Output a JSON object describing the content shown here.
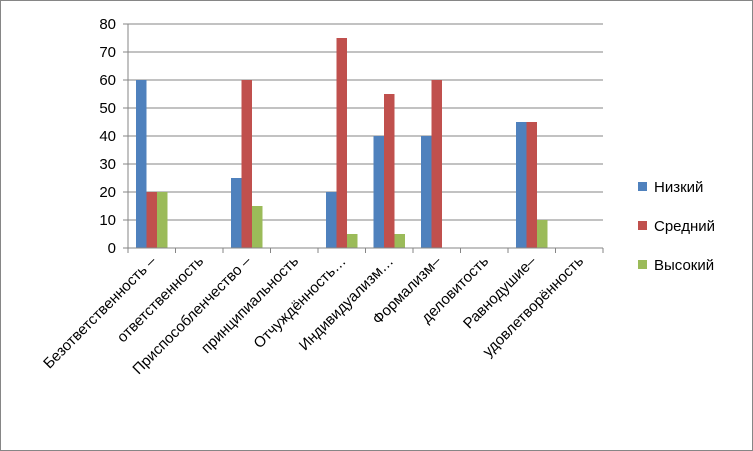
{
  "chart_data": {
    "type": "bar",
    "title": "",
    "xlabel": "",
    "ylabel": "",
    "ylim": [
      0,
      80
    ],
    "yticks": [
      "0",
      "10",
      "20",
      "30",
      "40",
      "50",
      "60",
      "70",
      "80"
    ],
    "grid": true,
    "legend_position": "right",
    "categories": [
      "Безответственность –",
      "ответственность",
      "Приспособленчество –",
      "принципиальность",
      "Отчуждённость…",
      "Индивидуализм…",
      "Формализм–",
      "деловитость",
      "Равнодушие–",
      "удовлетворённость"
    ],
    "series": [
      {
        "name": "Низкий",
        "color": "#4F81BD",
        "values": [
          60,
          null,
          25,
          null,
          20,
          40,
          40,
          null,
          45,
          null
        ]
      },
      {
        "name": "Средний",
        "color": "#C0504D",
        "values": [
          20,
          null,
          60,
          null,
          75,
          55,
          60,
          null,
          45,
          null
        ]
      },
      {
        "name": "Высокий",
        "color": "#9BBB59",
        "values": [
          20,
          null,
          15,
          null,
          5,
          5,
          null,
          null,
          10,
          null
        ]
      }
    ]
  }
}
